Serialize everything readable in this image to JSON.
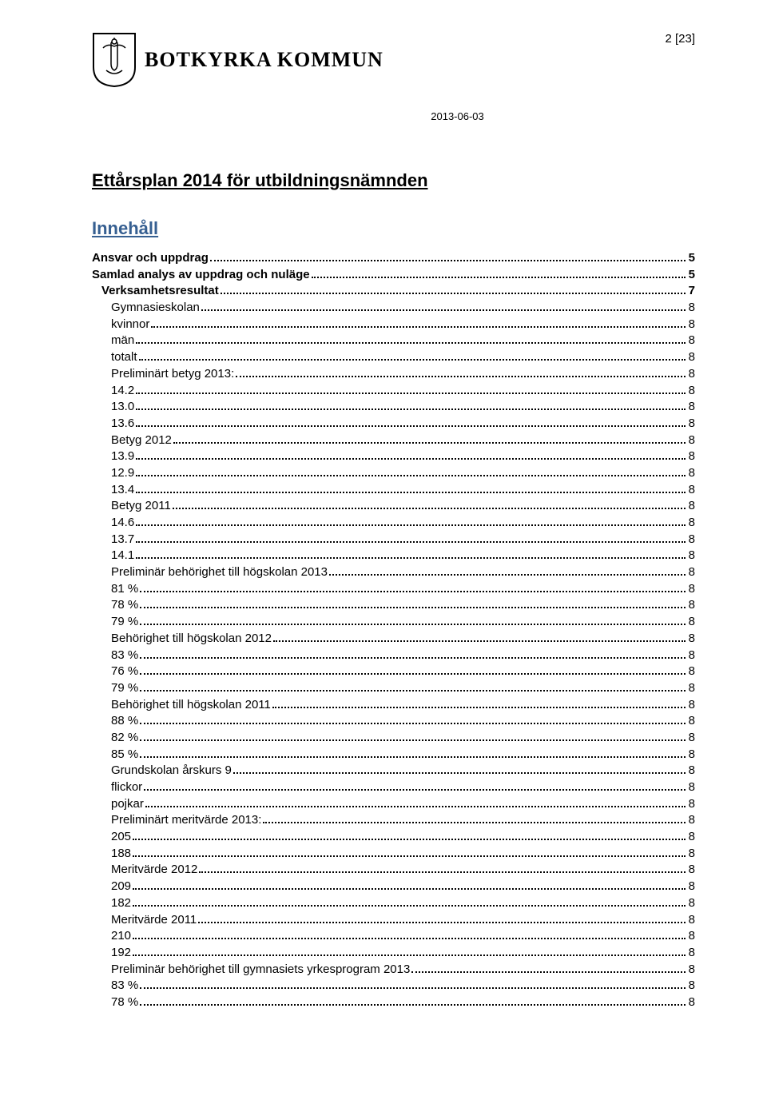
{
  "header": {
    "brand": "BOTKYRKA KOMMUN",
    "page_indicator": "2 [23]",
    "date": "2013-06-03"
  },
  "doc_title": "Ettårsplan 2014 för utbildningsnämnden",
  "section_title": "Innehåll",
  "toc": [
    {
      "label": "Ansvar och uppdrag",
      "page": "5",
      "level": 0
    },
    {
      "label": "Samlad analys av uppdrag och nuläge",
      "page": "5",
      "level": 0
    },
    {
      "label": "Verksamhetsresultat",
      "page": "7",
      "level": 1
    },
    {
      "label": "Gymnasieskolan",
      "page": "8",
      "level": 2
    },
    {
      "label": "kvinnor",
      "page": "8",
      "level": 2
    },
    {
      "label": "män",
      "page": "8",
      "level": 2
    },
    {
      "label": "totalt",
      "page": "8",
      "level": 2
    },
    {
      "label": "Preliminärt betyg  2013:",
      "page": "8",
      "level": 2
    },
    {
      "label": "14.2",
      "page": "8",
      "level": 2
    },
    {
      "label": "13.0",
      "page": "8",
      "level": 2
    },
    {
      "label": "13.6",
      "page": "8",
      "level": 2
    },
    {
      "label": "Betyg 2012",
      "page": "8",
      "level": 2
    },
    {
      "label": "13.9",
      "page": "8",
      "level": 2
    },
    {
      "label": "12.9",
      "page": "8",
      "level": 2
    },
    {
      "label": "13.4",
      "page": "8",
      "level": 2
    },
    {
      "label": "Betyg 2011",
      "page": "8",
      "level": 2
    },
    {
      "label": "14.6",
      "page": "8",
      "level": 2
    },
    {
      "label": "13.7",
      "page": "8",
      "level": 2
    },
    {
      "label": "14.1",
      "page": "8",
      "level": 2
    },
    {
      "label": "Preliminär behörighet till högskolan 2013",
      "page": "8",
      "level": 2
    },
    {
      "label": "81 %",
      "page": "8",
      "level": 2
    },
    {
      "label": "78 %",
      "page": "8",
      "level": 2
    },
    {
      "label": "79 %",
      "page": "8",
      "level": 2
    },
    {
      "label": "Behörighet till högskolan 2012",
      "page": "8",
      "level": 2
    },
    {
      "label": "83 %",
      "page": "8",
      "level": 2
    },
    {
      "label": "76 %",
      "page": "8",
      "level": 2
    },
    {
      "label": "79 %",
      "page": "8",
      "level": 2
    },
    {
      "label": "Behörighet till högskolan 2011",
      "page": "8",
      "level": 2
    },
    {
      "label": "88 %",
      "page": "8",
      "level": 2
    },
    {
      "label": "82 %",
      "page": "8",
      "level": 2
    },
    {
      "label": "85 %",
      "page": "8",
      "level": 2
    },
    {
      "label": "Grundskolan årskurs 9",
      "page": "8",
      "level": 2
    },
    {
      "label": "flickor",
      "page": "8",
      "level": 2
    },
    {
      "label": "pojkar",
      "page": "8",
      "level": 2
    },
    {
      "label": "Preliminärt meritvärde  2013:",
      "page": "8",
      "level": 2
    },
    {
      "label": "205",
      "page": "8",
      "level": 2
    },
    {
      "label": "188",
      "page": "8",
      "level": 2
    },
    {
      "label": "Meritvärde  2012",
      "page": "8",
      "level": 2
    },
    {
      "label": "209",
      "page": "8",
      "level": 2
    },
    {
      "label": "182",
      "page": "8",
      "level": 2
    },
    {
      "label": "Meritvärde 2011",
      "page": "8",
      "level": 2
    },
    {
      "label": "210",
      "page": "8",
      "level": 2
    },
    {
      "label": "192",
      "page": "8",
      "level": 2
    },
    {
      "label": "Preliminär behörighet till gymnasiets yrkesprogram  2013",
      "page": "8",
      "level": 2
    },
    {
      "label": "83 %",
      "page": "8",
      "level": 2
    },
    {
      "label": "78 %",
      "page": "8",
      "level": 2
    }
  ]
}
